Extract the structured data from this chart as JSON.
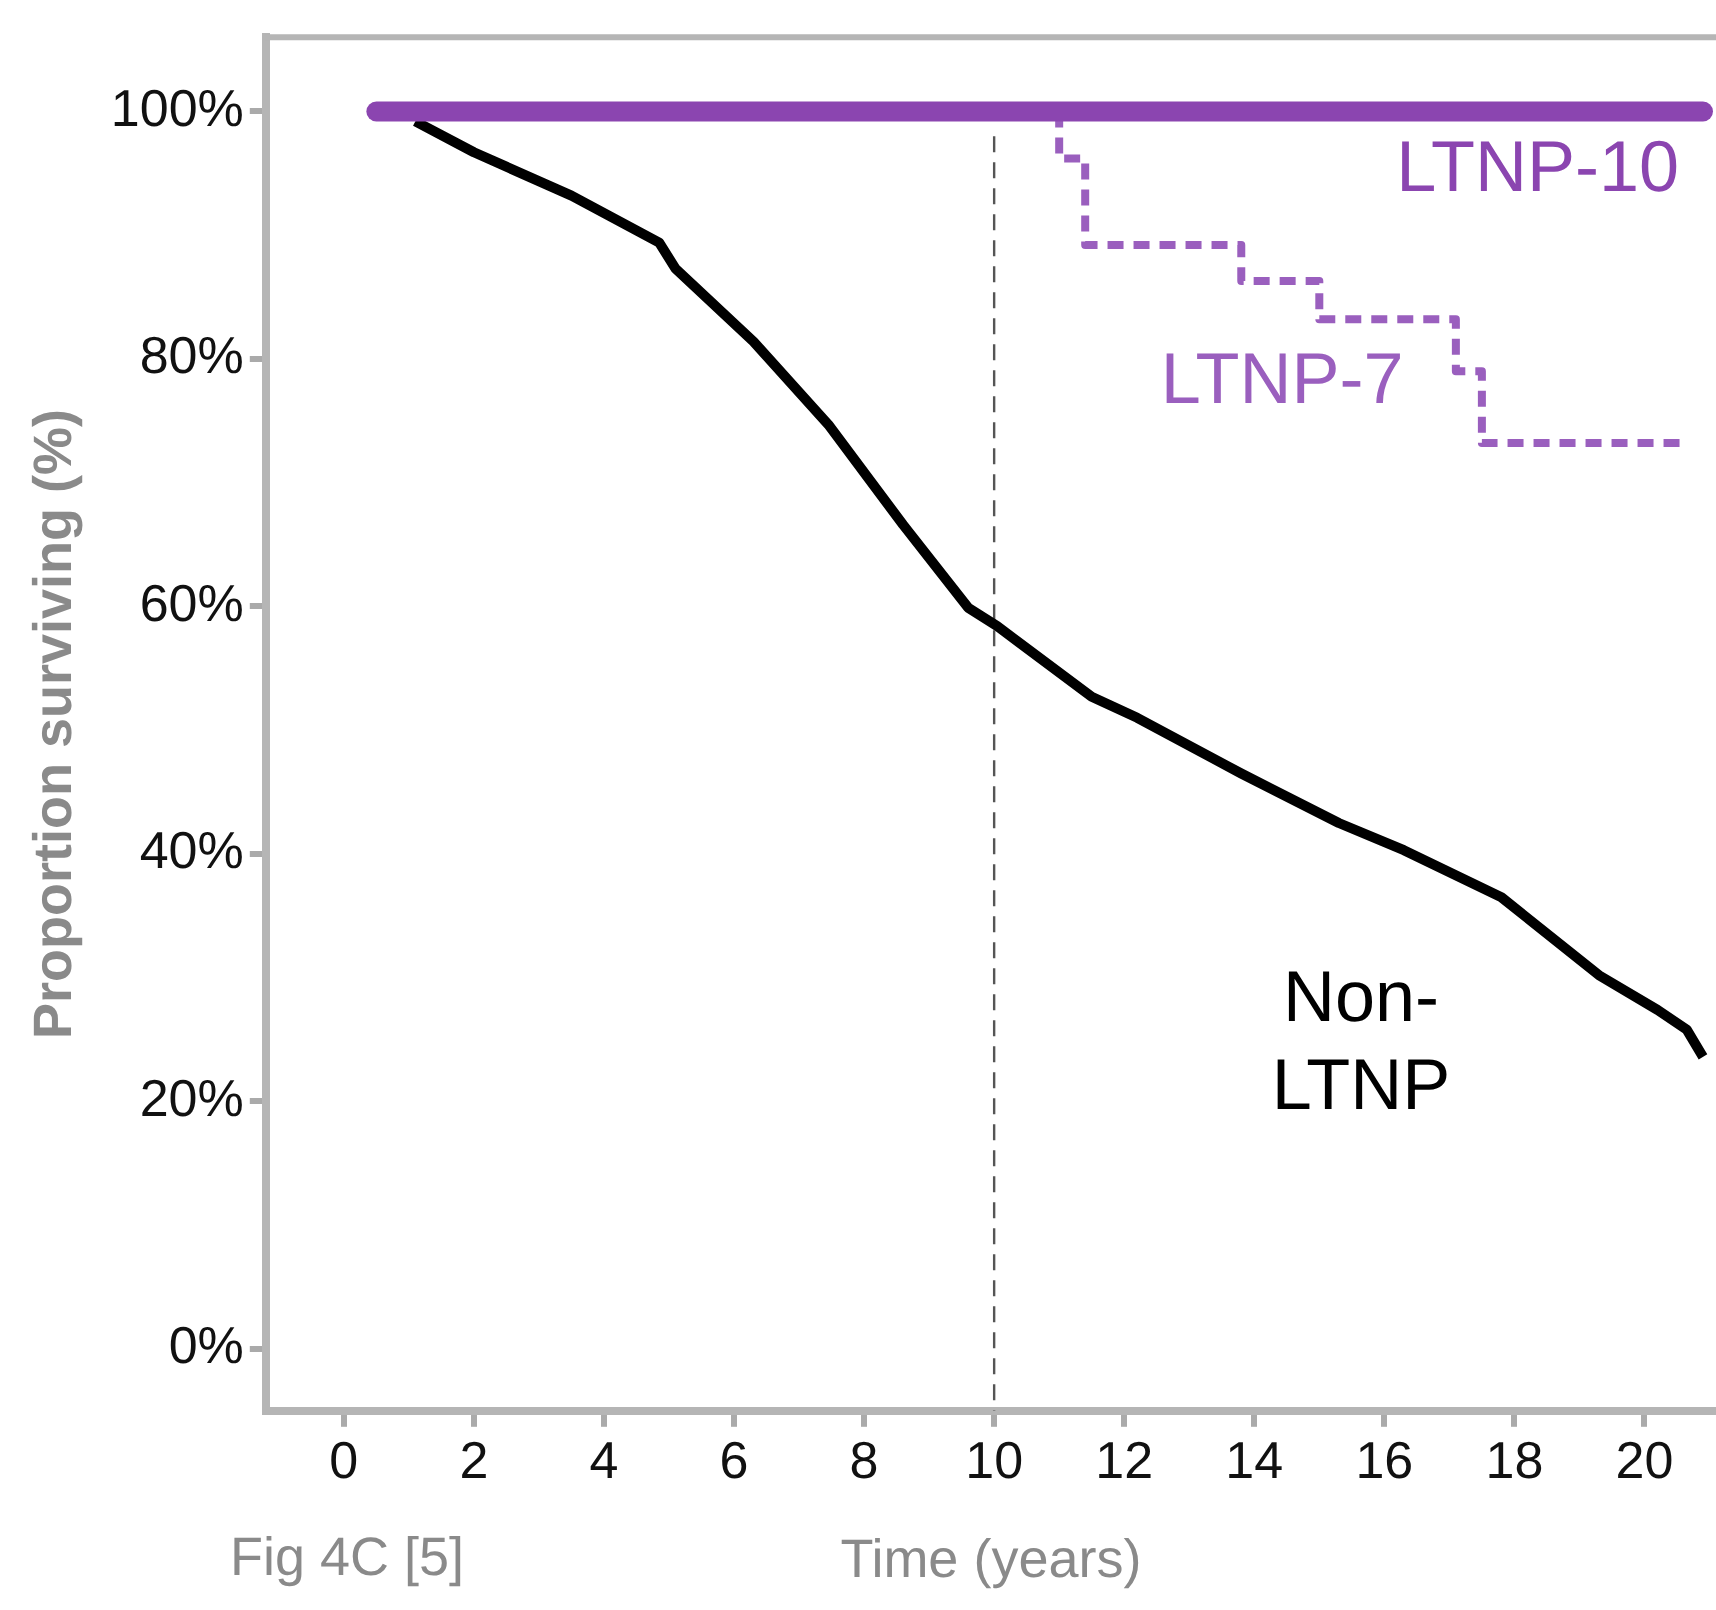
{
  "chart_data": {
    "type": "line",
    "xlabel": "Time (years)",
    "ylabel": "Proportion surviving (%)",
    "annotations": [
      "Fig 4C [5]"
    ],
    "xlim": [
      -1.2,
      21.1
    ],
    "xticks": [
      0,
      2,
      4,
      6,
      8,
      10,
      12,
      14,
      16,
      18,
      20
    ],
    "ylim": [
      -5,
      106
    ],
    "yticks": [
      {
        "value": 0,
        "label": "0%"
      },
      {
        "value": 20,
        "label": "20%"
      },
      {
        "value": 40,
        "label": "40%"
      },
      {
        "value": 60,
        "label": "60%"
      },
      {
        "value": 80,
        "label": "80%"
      },
      {
        "value": 100,
        "label": "100%"
      }
    ],
    "grid": false,
    "legend": false,
    "marker": "none",
    "ref_lines": [
      {
        "axis": "x",
        "value": 10,
        "color": "#555555",
        "line_style": "dashed"
      }
    ],
    "series": [
      {
        "name": "LTNP-10",
        "type": "line",
        "color": "#8b45b0",
        "line_style": "solid",
        "x": [
          0.5,
          20.9
        ],
        "values": [
          100,
          100
        ]
      },
      {
        "name": "LTNP-7",
        "type": "step",
        "color": "#9a5fbe",
        "line_style": "dashed",
        "x": [
          11.0,
          11.4,
          13.8,
          15.0,
          17.1,
          17.5,
          19.0,
          20.6
        ],
        "values": [
          100,
          96.2,
          89.2,
          86.3,
          83.2,
          79.0,
          73.2,
          73.2
        ]
      },
      {
        "name": "Non-LTNP",
        "type": "line",
        "color": "#000000",
        "line_style": "solid",
        "x": [
          1.1,
          2,
          3.5,
          4.85,
          5.1,
          6.3,
          7.45,
          8.6,
          9.6,
          10.05,
          11.5,
          12.2,
          13.8,
          15.3,
          16.3,
          17.8,
          19.3,
          20.2,
          20.65,
          20.9
        ],
        "values": [
          99.2,
          96.7,
          93.2,
          89.4,
          87.3,
          81.4,
          74.7,
          66.6,
          59.9,
          58.4,
          52.7,
          51.0,
          46.5,
          42.5,
          40.3,
          36.5,
          30.2,
          27.4,
          25.8,
          23.6
        ]
      }
    ]
  }
}
